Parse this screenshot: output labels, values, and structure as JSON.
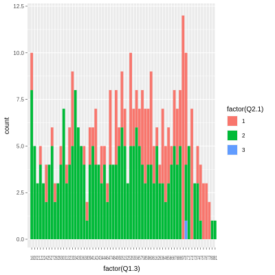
{
  "chart_data": {
    "type": "bar",
    "stacked": true,
    "xlabel": "factor(Q1.3)",
    "ylabel": "count",
    "ylim": [
      0,
      12.5
    ],
    "yticks": [
      0.0,
      2.5,
      5.0,
      7.5,
      10.0,
      12.5
    ],
    "ytick_labels": [
      "0.0",
      "2.5",
      "5.0",
      "7.5",
      "10.0",
      "12.5"
    ],
    "grid": true,
    "panel_background": "#ebebeb",
    "legend": {
      "title": "factor(Q2.1)",
      "position": "right",
      "entries": [
        {
          "label": "1",
          "color": "#F8766D"
        },
        {
          "label": "2",
          "color": "#00BA38"
        },
        {
          "label": "3",
          "color": "#619CFF"
        }
      ]
    },
    "x_tick_text": "18202122242527282930313233343536383941424344464748495051525355565758596061626364656667686970717273747576778081",
    "series": [
      {
        "name": "1",
        "color": "#F8766D",
        "values": [
          2,
          0,
          0,
          1,
          0,
          2,
          0,
          1,
          1,
          0,
          1,
          0,
          1,
          2,
          4,
          0,
          0,
          0,
          1,
          1,
          2,
          1,
          3,
          0,
          2,
          1,
          1,
          4,
          0,
          4,
          1,
          3,
          2,
          0,
          5,
          2,
          2,
          2,
          4,
          4,
          3,
          5,
          2,
          1,
          1,
          4,
          3,
          3,
          1,
          3,
          3,
          3,
          12,
          6,
          0,
          7,
          0,
          2,
          3,
          3,
          3,
          2,
          0,
          0
        ]
      },
      {
        "name": "2",
        "color": "#00BA38",
        "values": [
          8,
          5,
          3,
          4,
          3,
          2,
          4,
          5,
          2,
          3,
          4,
          7,
          3,
          4,
          5,
          8,
          6,
          5,
          4,
          1,
          4,
          5,
          4,
          4,
          3,
          4,
          2,
          4,
          4,
          4,
          5,
          6,
          5,
          3,
          5,
          5,
          6,
          5,
          4,
          3,
          4,
          4,
          3,
          5,
          3,
          3,
          2,
          3,
          4,
          5,
          4,
          5,
          0,
          3,
          5,
          0,
          3,
          3,
          1,
          0,
          0,
          0,
          1,
          1
        ]
      },
      {
        "name": "3",
        "color": "#619CFF",
        "values": [
          0,
          0,
          0,
          0,
          0,
          0,
          0,
          0,
          0,
          0,
          0,
          0,
          0,
          0,
          0,
          0,
          0,
          0,
          0,
          0,
          0,
          0,
          0,
          0,
          0,
          0,
          0,
          0,
          0,
          0,
          0,
          0,
          0,
          0,
          0,
          0,
          0,
          0,
          0,
          0,
          0,
          0,
          0,
          0,
          0,
          0,
          0,
          0,
          0,
          0,
          0,
          0,
          0,
          1,
          0,
          0,
          0,
          0,
          0,
          0,
          0,
          0,
          0,
          0
        ]
      }
    ]
  }
}
